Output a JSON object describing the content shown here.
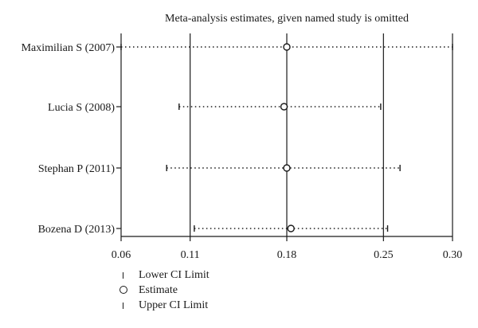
{
  "chart_data": {
    "type": "scatter",
    "title": "Meta-analysis estimates, given named study is omitted",
    "studies": [
      "Maximilian S (2007)",
      "Lucia S (2008)",
      "Stephan P (2011)",
      "Bozena D (2013)"
    ],
    "estimate": [
      0.18,
      0.178,
      0.18,
      0.183
    ],
    "lower_ci": [
      0.06,
      0.102,
      0.093,
      0.113
    ],
    "upper_ci": [
      0.3,
      0.248,
      0.262,
      0.253
    ],
    "xlim": [
      0.06,
      0.3
    ],
    "x_ticks": [
      "0.06",
      "0.11",
      "0.18",
      "0.25",
      "0.30"
    ],
    "x_tick_values": [
      0.06,
      0.11,
      0.18,
      0.25,
      0.3
    ],
    "reference_lines": [
      0.11,
      0.18,
      0.25
    ],
    "legend_position": "bottom-left",
    "legend": [
      {
        "symbol": "tick",
        "label": "Lower CI Limit"
      },
      {
        "symbol": "circle",
        "label": "Estimate"
      },
      {
        "symbol": "tick",
        "label": "Upper CI Limit"
      }
    ]
  }
}
